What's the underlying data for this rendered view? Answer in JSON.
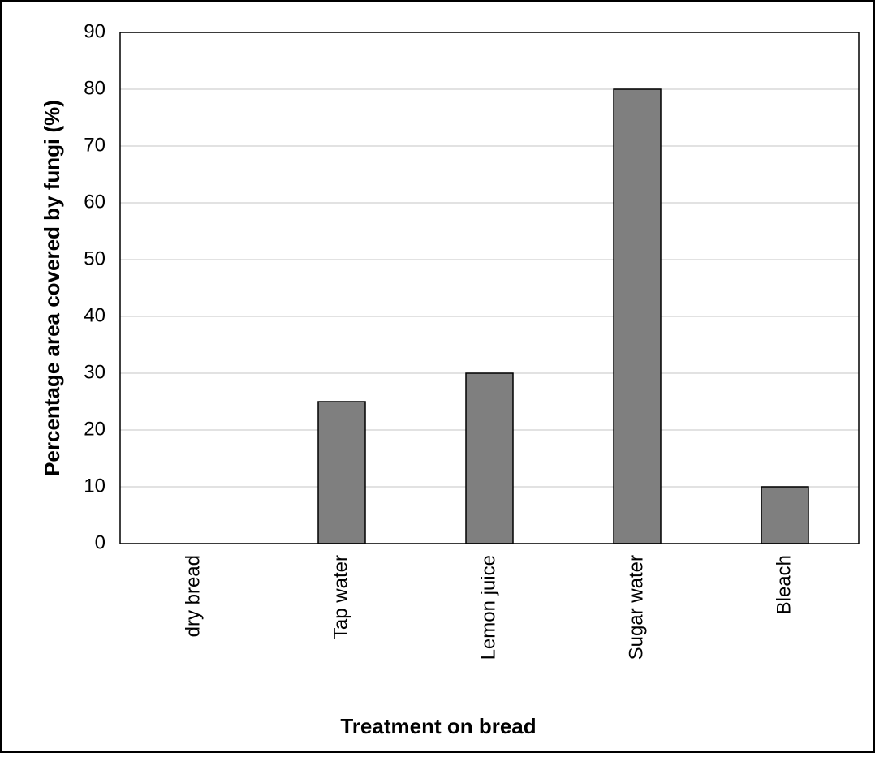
{
  "chart_data": {
    "type": "bar",
    "categories": [
      "dry bread",
      "Tap water",
      "Lemon juice",
      "Sugar water",
      "Bleach"
    ],
    "values": [
      0,
      25,
      30,
      80,
      10
    ],
    "color": "#7f7f7f",
    "x_label": "Treatment on bread",
    "y_label": "Percentage area covered by fungi (%)",
    "ylim": [
      0,
      90
    ],
    "yticks": [
      0,
      10,
      20,
      30,
      40,
      50,
      60,
      70,
      80,
      90
    ],
    "grid": true
  }
}
